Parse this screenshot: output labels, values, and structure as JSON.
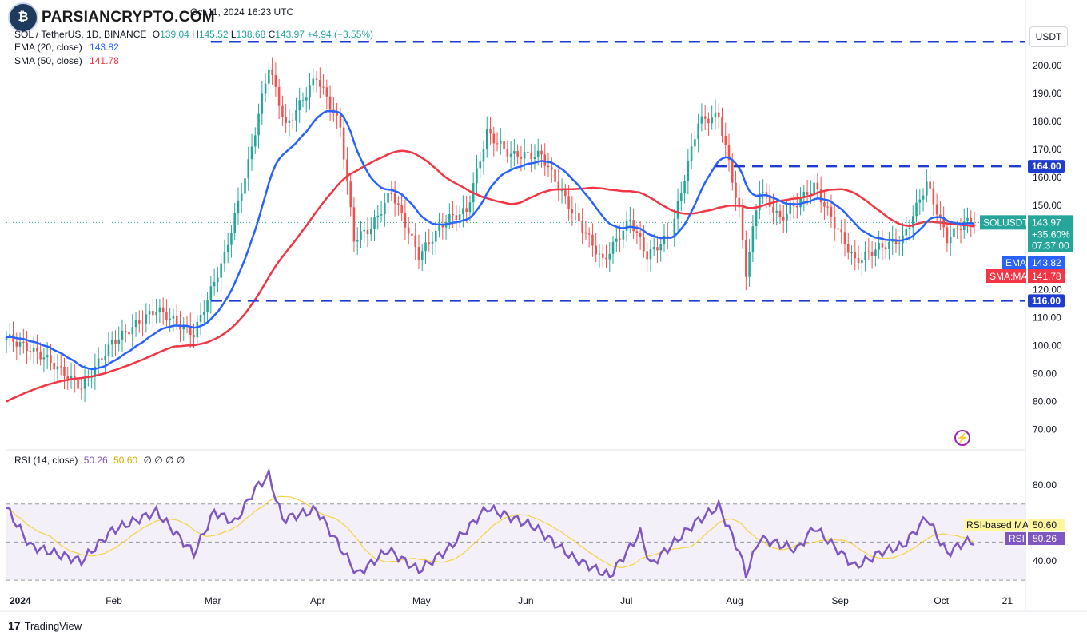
{
  "header": {
    "symbol": "SOL / TetherUS, 1D, BINANCE",
    "open_label": "O",
    "open": "139.04",
    "high_label": "H",
    "high": "145.52",
    "low_label": "L",
    "low": "138.68",
    "close_label": "C",
    "close": "143.97",
    "change": "+4.94 (+3.55%)",
    "date": "Oct 11, 2024 16:23 UTC",
    "ema_label": "EMA (20, close)",
    "ema_value": "143.82",
    "sma_label": "SMA (50, close)",
    "sma_value": "141.78",
    "rsi_label": "RSI (14, close)",
    "rsi_value": "50.26",
    "rsi_ma_value": "50.60",
    "rsi_zeros": "∅ ∅ ∅ ∅"
  },
  "watermark": "PARSIANCRYPTO.COM",
  "footer": {
    "brand": "TradingView"
  },
  "currency_button": "USDT",
  "colors": {
    "up": "#26a69a",
    "down": "#ef5350",
    "ema": "#2962ff",
    "sma": "#f23645",
    "rsi": "#7e57c2",
    "rsi_ma": "#f5d442",
    "level": "#1e3ccf"
  },
  "chart_data": [
    {
      "type": "candlestick",
      "title": "SOL / TetherUS, 1D, BINANCE",
      "ylim": [
        65,
        212
      ],
      "price_ticks": [
        70,
        80,
        90,
        100,
        110,
        120,
        130,
        140,
        150,
        160,
        170,
        180,
        190,
        200
      ],
      "price_tick_labels": [
        "70.00",
        "80.00",
        "90.00",
        "100.00",
        "110.00",
        "120.00",
        "130.00",
        "140.00",
        "150.00",
        "160.00",
        "170.00",
        "180.00",
        "190.00",
        "200.00"
      ],
      "time_labels": [
        "2024",
        "Feb",
        "Mar",
        "Apr",
        "May",
        "Jun",
        "Jul",
        "Aug",
        "Sep",
        "Oct",
        "21"
      ],
      "key_levels": [
        {
          "value": 208.5,
          "label": ""
        },
        {
          "value": 164.0,
          "label": "164.00"
        },
        {
          "value": 116.0,
          "label": "116.00"
        }
      ],
      "last_price": {
        "label": "SOLUSDT",
        "value": "143.97",
        "change": "+35.60%",
        "countdown": "07:37:00"
      },
      "ema_badge": {
        "label": "EMA",
        "value": "143.82"
      },
      "sma_badge": {
        "label": "SMA:MA",
        "value": "141.78"
      },
      "anchors": [
        {
          "d": "2024-01-01",
          "c": 103
        },
        {
          "d": "2024-01-12",
          "c": 96
        },
        {
          "d": "2024-01-23",
          "c": 85
        },
        {
          "d": "2024-02-01",
          "c": 101
        },
        {
          "d": "2024-02-14",
          "c": 113
        },
        {
          "d": "2024-02-25",
          "c": 104
        },
        {
          "d": "2024-03-05",
          "c": 132
        },
        {
          "d": "2024-03-12",
          "c": 165
        },
        {
          "d": "2024-03-18",
          "c": 200
        },
        {
          "d": "2024-03-23",
          "c": 178
        },
        {
          "d": "2024-04-01",
          "c": 196
        },
        {
          "d": "2024-04-08",
          "c": 178
        },
        {
          "d": "2024-04-12",
          "c": 138
        },
        {
          "d": "2024-04-17",
          "c": 142
        },
        {
          "d": "2024-04-23",
          "c": 155
        },
        {
          "d": "2024-05-01",
          "c": 132
        },
        {
          "d": "2024-05-09",
          "c": 145
        },
        {
          "d": "2024-05-15",
          "c": 148
        },
        {
          "d": "2024-05-21",
          "c": 176
        },
        {
          "d": "2024-05-28",
          "c": 168
        },
        {
          "d": "2024-06-06",
          "c": 168
        },
        {
          "d": "2024-06-14",
          "c": 150
        },
        {
          "d": "2024-06-24",
          "c": 130
        },
        {
          "d": "2024-07-02",
          "c": 145
        },
        {
          "d": "2024-07-07",
          "c": 132
        },
        {
          "d": "2024-07-14",
          "c": 140
        },
        {
          "d": "2024-07-22",
          "c": 180
        },
        {
          "d": "2024-07-28",
          "c": 182
        },
        {
          "d": "2024-08-03",
          "c": 148
        },
        {
          "d": "2024-08-05",
          "c": 126
        },
        {
          "d": "2024-08-09",
          "c": 156
        },
        {
          "d": "2024-08-15",
          "c": 145
        },
        {
          "d": "2024-08-25",
          "c": 157
        },
        {
          "d": "2024-09-06",
          "c": 130
        },
        {
          "d": "2024-09-13",
          "c": 135
        },
        {
          "d": "2024-09-20",
          "c": 138
        },
        {
          "d": "2024-09-27",
          "c": 158
        },
        {
          "d": "2024-10-03",
          "c": 138
        },
        {
          "d": "2024-10-08",
          "c": 144
        },
        {
          "d": "2024-10-11",
          "c": 143.97
        }
      ]
    },
    {
      "type": "line",
      "title": "RSI (14, close)",
      "ylim": [
        25,
        90
      ],
      "ticks": [
        40,
        60,
        80
      ],
      "tick_labels": [
        "40.00",
        "60.00",
        "80.00"
      ],
      "band": [
        30,
        70
      ],
      "midline": 50,
      "rsi_ma_badge": {
        "label": "RSI-based MA",
        "value": "50.60"
      },
      "rsi_badge": {
        "label": "RSI",
        "value": "50.26"
      },
      "anchors": [
        {
          "d": "2024-01-01",
          "v": 68
        },
        {
          "d": "2024-01-08",
          "v": 48
        },
        {
          "d": "2024-01-23",
          "v": 40
        },
        {
          "d": "2024-02-01",
          "v": 56
        },
        {
          "d": "2024-02-14",
          "v": 66
        },
        {
          "d": "2024-02-25",
          "v": 44
        },
        {
          "d": "2024-03-02",
          "v": 66
        },
        {
          "d": "2024-03-08",
          "v": 60
        },
        {
          "d": "2024-03-14",
          "v": 78
        },
        {
          "d": "2024-03-18",
          "v": 85
        },
        {
          "d": "2024-03-22",
          "v": 62
        },
        {
          "d": "2024-04-01",
          "v": 67
        },
        {
          "d": "2024-04-13",
          "v": 33
        },
        {
          "d": "2024-04-22",
          "v": 46
        },
        {
          "d": "2024-05-01",
          "v": 35
        },
        {
          "d": "2024-05-10",
          "v": 47
        },
        {
          "d": "2024-05-21",
          "v": 68
        },
        {
          "d": "2024-06-04",
          "v": 58
        },
        {
          "d": "2024-06-15",
          "v": 42
        },
        {
          "d": "2024-06-26",
          "v": 32
        },
        {
          "d": "2024-07-05",
          "v": 55
        },
        {
          "d": "2024-07-08",
          "v": 38
        },
        {
          "d": "2024-07-21",
          "v": 60
        },
        {
          "d": "2024-07-28",
          "v": 69
        },
        {
          "d": "2024-08-03",
          "v": 45
        },
        {
          "d": "2024-08-05",
          "v": 33
        },
        {
          "d": "2024-08-09",
          "v": 52
        },
        {
          "d": "2024-08-20",
          "v": 46
        },
        {
          "d": "2024-08-25",
          "v": 58
        },
        {
          "d": "2024-09-06",
          "v": 37
        },
        {
          "d": "2024-09-14",
          "v": 45
        },
        {
          "d": "2024-09-20",
          "v": 48
        },
        {
          "d": "2024-09-27",
          "v": 63
        },
        {
          "d": "2024-10-03",
          "v": 44
        },
        {
          "d": "2024-10-08",
          "v": 50
        },
        {
          "d": "2024-10-11",
          "v": 50.26
        }
      ]
    }
  ]
}
